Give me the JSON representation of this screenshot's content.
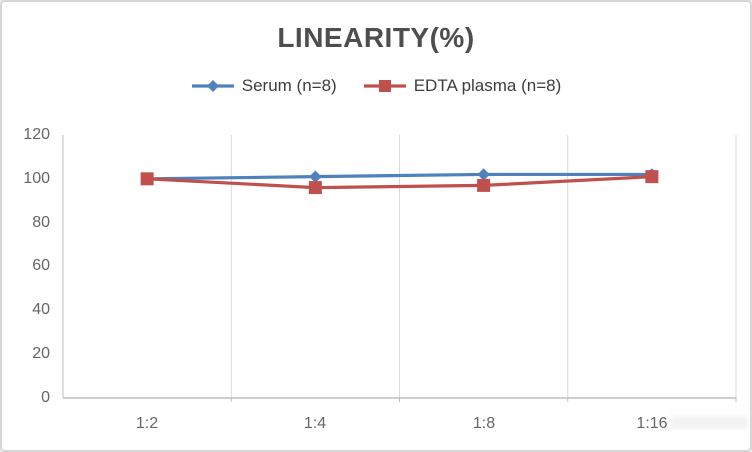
{
  "colors": {
    "serum": "#4F81BD",
    "edta_plasma": "#C0504D",
    "title_text": "#4e4e4e",
    "tick_text": "#666666",
    "legend_text": "#3d3d3d",
    "axis": "#bfbfbf",
    "gridline": "#d9d9d9",
    "frame_border": "#d6d6d6",
    "background": "#ffffff"
  },
  "chart_data": {
    "type": "line",
    "title": "LINEARITY(%)",
    "categories": [
      "1:2",
      "1:4",
      "1:8",
      "1:16"
    ],
    "series": [
      {
        "name": "Serum (n=8)",
        "color": "#4F81BD",
        "marker": "diamond",
        "values": [
          100,
          101,
          102,
          102
        ]
      },
      {
        "name": "EDTA plasma (n=8)",
        "color": "#C0504D",
        "marker": "square",
        "values": [
          100,
          96,
          97,
          101
        ]
      }
    ],
    "xlabel": "",
    "ylabel": "",
    "ylim": [
      0,
      120
    ],
    "yticks": [
      0,
      20,
      40,
      60,
      80,
      100,
      120
    ],
    "grid": "vertical-only",
    "legend_position": "top"
  }
}
